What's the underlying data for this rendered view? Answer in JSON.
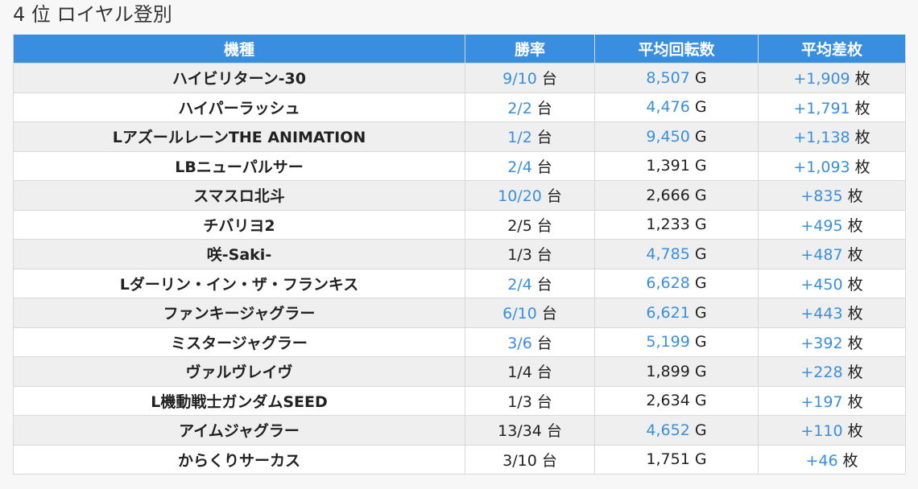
{
  "page_title": "4 位 ロイヤル登別",
  "table": {
    "headers": [
      "機種",
      "勝率",
      "平均回転数",
      "平均差枚"
    ],
    "units": {
      "win": "台",
      "spin": "G",
      "diff": "枚"
    },
    "rows": [
      {
        "model": "ハイビリターン-30",
        "win": "9/10",
        "win_hl": true,
        "spin": "8,507",
        "spin_hl": true,
        "diff": "+1,909",
        "diff_hl": true
      },
      {
        "model": "ハイパーラッシュ",
        "win": "2/2",
        "win_hl": true,
        "spin": "4,476",
        "spin_hl": true,
        "diff": "+1,791",
        "diff_hl": true
      },
      {
        "model": "LアズールレーンTHE ANIMATION",
        "win": "1/2",
        "win_hl": true,
        "spin": "9,450",
        "spin_hl": true,
        "diff": "+1,138",
        "diff_hl": true
      },
      {
        "model": "LBニューパルサー",
        "win": "2/4",
        "win_hl": true,
        "spin": "1,391",
        "spin_hl": false,
        "diff": "+1,093",
        "diff_hl": true
      },
      {
        "model": "スマスロ北斗",
        "win": "10/20",
        "win_hl": true,
        "spin": "2,666",
        "spin_hl": false,
        "diff": "+835",
        "diff_hl": true
      },
      {
        "model": "チバリヨ2",
        "win": "2/5",
        "win_hl": false,
        "spin": "1,233",
        "spin_hl": false,
        "diff": "+495",
        "diff_hl": true
      },
      {
        "model": "咲-Saki-",
        "win": "1/3",
        "win_hl": false,
        "spin": "4,785",
        "spin_hl": true,
        "diff": "+487",
        "diff_hl": true
      },
      {
        "model": "Lダーリン・イン・ザ・フランキス",
        "win": "2/4",
        "win_hl": true,
        "spin": "6,628",
        "spin_hl": true,
        "diff": "+450",
        "diff_hl": true
      },
      {
        "model": "ファンキージャグラー",
        "win": "6/10",
        "win_hl": true,
        "spin": "6,621",
        "spin_hl": true,
        "diff": "+443",
        "diff_hl": true
      },
      {
        "model": "ミスタージャグラー",
        "win": "3/6",
        "win_hl": true,
        "spin": "5,199",
        "spin_hl": true,
        "diff": "+392",
        "diff_hl": true
      },
      {
        "model": "ヴァルヴレイヴ",
        "win": "1/4",
        "win_hl": false,
        "spin": "1,899",
        "spin_hl": false,
        "diff": "+228",
        "diff_hl": true
      },
      {
        "model": "L機動戦士ガンダムSEED",
        "win": "1/3",
        "win_hl": false,
        "spin": "2,634",
        "spin_hl": false,
        "diff": "+197",
        "diff_hl": true
      },
      {
        "model": "アイムジャグラー",
        "win": "13/34",
        "win_hl": false,
        "spin": "4,652",
        "spin_hl": true,
        "diff": "+110",
        "diff_hl": true
      },
      {
        "model": "からくりサーカス",
        "win": "3/10",
        "win_hl": false,
        "spin": "1,751",
        "spin_hl": false,
        "diff": "+46",
        "diff_hl": true
      }
    ]
  },
  "colors": {
    "header_bg": "#3a8ee0",
    "highlight_text": "#3a8ee0",
    "row_stripe": "#efefef",
    "row_plain": "#ffffff"
  }
}
